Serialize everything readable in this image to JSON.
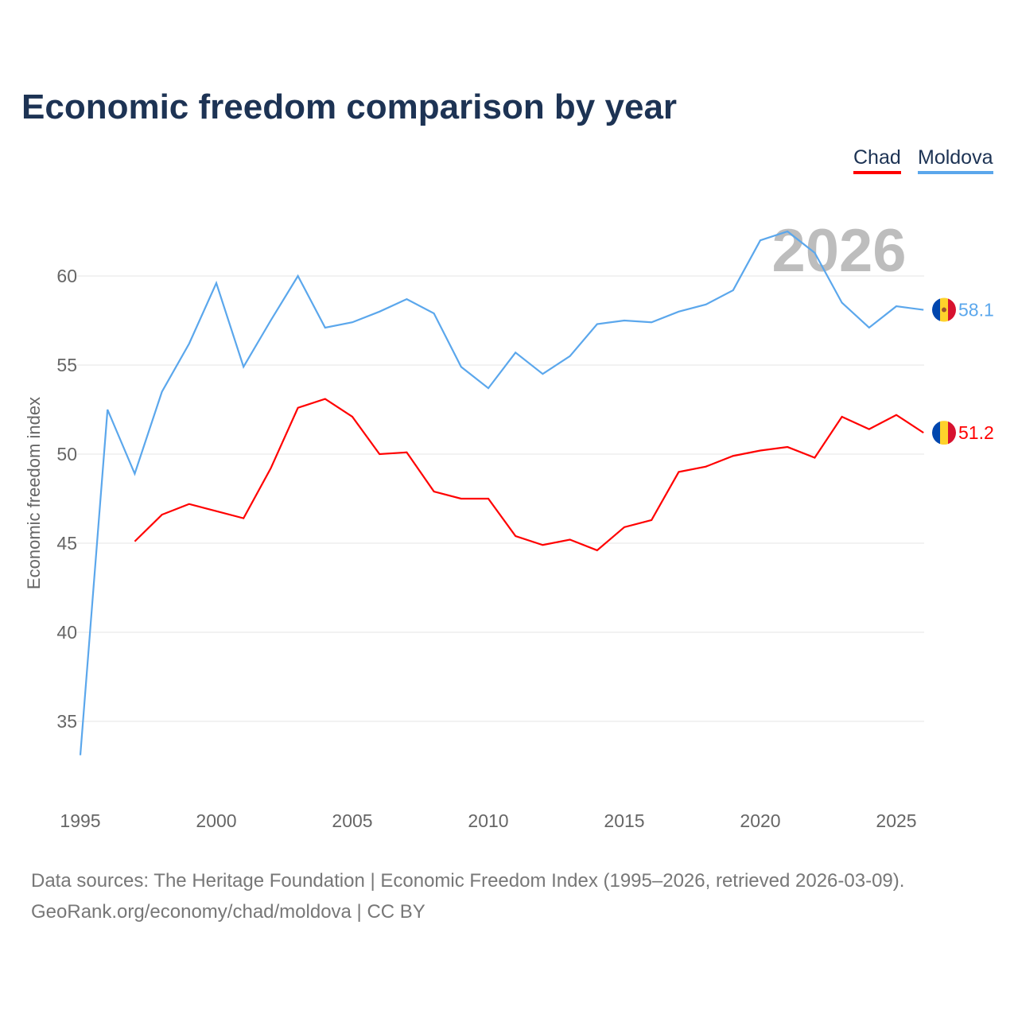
{
  "chart_data": {
    "type": "line",
    "title": "Economic freedom comparison by year",
    "xlabel": "",
    "ylabel": "Economic freedom index",
    "watermark_year": "2026",
    "x": [
      1995,
      1996,
      1997,
      1998,
      1999,
      2000,
      2001,
      2002,
      2003,
      2004,
      2005,
      2006,
      2007,
      2008,
      2009,
      2010,
      2011,
      2012,
      2013,
      2014,
      2015,
      2016,
      2017,
      2018,
      2019,
      2020,
      2021,
      2022,
      2023,
      2024,
      2025,
      2026
    ],
    "xticks": [
      1995,
      2000,
      2005,
      2010,
      2015,
      2020,
      2025
    ],
    "yticks": [
      35,
      40,
      45,
      50,
      55,
      60
    ],
    "xlim": [
      1995,
      2026
    ],
    "ylim": [
      31.8,
      63
    ],
    "legend_position": "top-right",
    "series": [
      {
        "name": "Chad",
        "color": "#ff0000",
        "end_label": "51.2",
        "values": [
          null,
          null,
          45.1,
          46.6,
          47.2,
          46.8,
          46.4,
          49.2,
          52.6,
          53.1,
          52.1,
          50.0,
          50.1,
          47.9,
          47.5,
          47.5,
          45.4,
          44.9,
          45.2,
          44.6,
          45.9,
          46.3,
          49.0,
          49.3,
          49.9,
          50.2,
          50.4,
          49.8,
          52.1,
          51.4,
          52.2,
          51.2
        ]
      },
      {
        "name": "Moldova",
        "color": "#5ba7ec",
        "end_label": "58.1",
        "values": [
          33.1,
          52.5,
          48.9,
          53.5,
          56.2,
          59.6,
          54.9,
          57.5,
          60.0,
          57.1,
          57.4,
          58.0,
          58.7,
          57.9,
          54.9,
          53.7,
          55.7,
          54.5,
          55.5,
          57.3,
          57.5,
          57.4,
          58.0,
          58.4,
          59.2,
          62.0,
          62.5,
          61.3,
          58.5,
          57.1,
          58.3,
          58.1
        ]
      }
    ]
  },
  "footer": {
    "line1": "Data sources: The Heritage Foundation | Economic Freedom Index (1995–2026, retrieved 2026-03-09).",
    "line2": "GeoRank.org/economy/chad/moldova | CC BY"
  }
}
